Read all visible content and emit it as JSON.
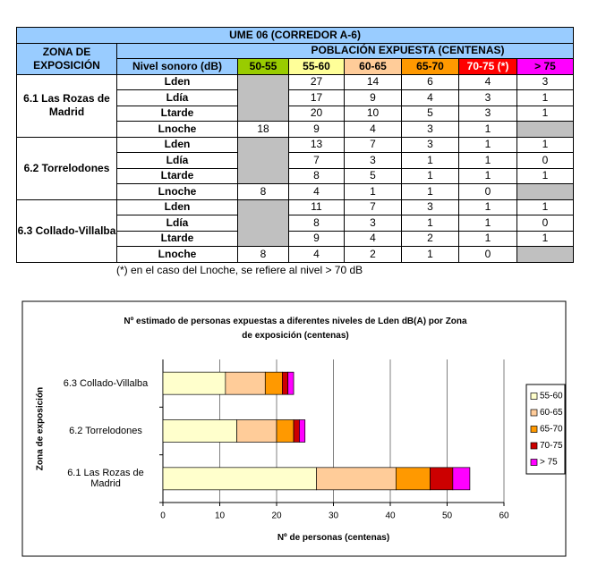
{
  "table": {
    "title": "UME 06 (CORREDOR A-6)",
    "header": {
      "zone": "ZONA DE EXPOSICIÓN",
      "population": "POBLACIÓN EXPUESTA (CENTENAS)",
      "level": "Nivel sonoro (dB)",
      "ranges": [
        "50-55",
        "55-60",
        "60-65",
        "65-70",
        "70-75 (*)",
        "> 75"
      ]
    },
    "zones": [
      {
        "name": "6.1 Las Rozas de Madrid",
        "rows": [
          [
            "Lden",
            null,
            27,
            14,
            6,
            4,
            3
          ],
          [
            "Ldía",
            null,
            17,
            9,
            4,
            3,
            1
          ],
          [
            "Ltarde",
            null,
            20,
            10,
            5,
            3,
            1
          ],
          [
            "Lnoche",
            18,
            9,
            4,
            3,
            1,
            null
          ]
        ]
      },
      {
        "name": "6.2 Torrelodones",
        "rows": [
          [
            "Lden",
            null,
            13,
            7,
            3,
            1,
            1
          ],
          [
            "Ldía",
            null,
            7,
            3,
            1,
            1,
            0
          ],
          [
            "Ltarde",
            null,
            8,
            5,
            1,
            1,
            1
          ],
          [
            "Lnoche",
            8,
            4,
            1,
            1,
            0,
            null
          ]
        ]
      },
      {
        "name": "6.3 Collado-Villalba",
        "rows": [
          [
            "Lden",
            null,
            11,
            7,
            3,
            1,
            1
          ],
          [
            "Ldía",
            null,
            8,
            3,
            1,
            1,
            0
          ],
          [
            "Ltarde",
            null,
            9,
            4,
            2,
            1,
            1
          ],
          [
            "Lnoche",
            8,
            4,
            2,
            1,
            0,
            null
          ]
        ]
      }
    ],
    "note": "(*) en el caso del Lnoche, se refiere al nivel > 70 dB"
  },
  "chart_data": {
    "type": "bar",
    "orientation": "horizontal",
    "stacked": true,
    "title": "Nº estimado de personas expuestas a diferentes niveles de Lden dB(A) por Zona de exposición (centenas)",
    "x_label": "Nº de personas (centenas)",
    "y_label": "Zona de exposición",
    "categories": [
      "6.1 Las Rozas de Madrid",
      "6.2 Torrelodones",
      "6.3 Collado-Villalba"
    ],
    "series": [
      {
        "name": "55-60",
        "color": "#ffffcc",
        "values": [
          27,
          13,
          11
        ]
      },
      {
        "name": "60-65",
        "color": "#ffcc99",
        "values": [
          14,
          7,
          7
        ]
      },
      {
        "name": "65-70",
        "color": "#ff9900",
        "values": [
          6,
          3,
          3
        ]
      },
      {
        "name": "70-75",
        "color": "#cc0000",
        "values": [
          4,
          1,
          1
        ]
      },
      {
        "name": "> 75",
        "color": "#ff00ff",
        "values": [
          3,
          1,
          1
        ]
      }
    ],
    "xlim": [
      0,
      60
    ],
    "xticks": [
      0,
      10,
      20,
      30,
      40,
      50,
      60
    ],
    "grid": true,
    "legend": "right"
  }
}
